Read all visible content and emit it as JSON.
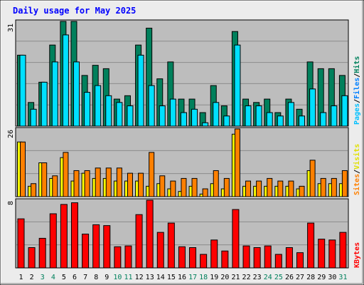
{
  "title": "Daily usage for May 2025",
  "colors": {
    "background": "#ececec",
    "plot_bg": "#bdbdbd",
    "hits": "#00805c",
    "files": "#00e0ff",
    "pages": "#00c0ff",
    "visits": "#ffff00",
    "sites": "#ff8000",
    "kbytes": "#ff0000",
    "title": "#0000ff",
    "weekday_label": "#000000",
    "weekend_label": "#00805c"
  },
  "chart_data": [
    {
      "type": "bar",
      "panel": "hits-files-pages",
      "title": "Daily usage for May 2025",
      "ymax_label": "31",
      "ylim": [
        0,
        31
      ],
      "legend": [
        "Pages",
        "Files",
        "Hits"
      ],
      "legend_separator": "/",
      "categories": [
        "1",
        "2",
        "3",
        "4",
        "5",
        "6",
        "7",
        "8",
        "9",
        "10",
        "11",
        "12",
        "13",
        "14",
        "15",
        "16",
        "17",
        "18",
        "19",
        "20",
        "21",
        "22",
        "23",
        "24",
        "25",
        "26",
        "27",
        "28",
        "29",
        "30",
        "31"
      ],
      "weekend_days": [
        "3",
        "4",
        "10",
        "11",
        "17",
        "18",
        "24",
        "25",
        "31"
      ],
      "series": [
        {
          "name": "Hits",
          "values": [
            21,
            7,
            13,
            24,
            31,
            31,
            15,
            18,
            17,
            8,
            9,
            24,
            29,
            14,
            19,
            8,
            8,
            4,
            12,
            6,
            28,
            8,
            7,
            8,
            4,
            8,
            5,
            19,
            17,
            17,
            15
          ]
        },
        {
          "name": "Files",
          "values": [
            21,
            5,
            13,
            19,
            27,
            19,
            10,
            12,
            9,
            7,
            6,
            21,
            12,
            6,
            8,
            4,
            5,
            1,
            7,
            3,
            24,
            6,
            6,
            4,
            3,
            7,
            3,
            11,
            4,
            6,
            9
          ]
        },
        {
          "name": "Pages",
          "values": [
            0,
            0,
            0,
            0,
            0,
            0,
            0,
            0,
            0,
            0,
            0,
            0,
            0,
            0,
            0,
            0,
            0,
            0,
            0,
            0,
            0,
            0,
            0,
            0,
            0,
            0,
            0,
            0,
            0,
            0,
            0
          ]
        }
      ]
    },
    {
      "type": "bar",
      "panel": "visits-sites",
      "ymax_label": "26",
      "ylim": [
        0,
        26
      ],
      "legend": [
        "Sites",
        "Visits"
      ],
      "legend_separator": "/",
      "categories": [
        "1",
        "2",
        "3",
        "4",
        "5",
        "6",
        "7",
        "8",
        "9",
        "10",
        "11",
        "12",
        "13",
        "14",
        "15",
        "16",
        "17",
        "18",
        "19",
        "20",
        "21",
        "22",
        "23",
        "24",
        "25",
        "26",
        "27",
        "28",
        "29",
        "30",
        "31"
      ],
      "series": [
        {
          "name": "Visits",
          "values": [
            21,
            4,
            13,
            7,
            15,
            6,
            9,
            7,
            7,
            6,
            6,
            6,
            4,
            5,
            3,
            2,
            4,
            1,
            5,
            3,
            24,
            4,
            4,
            4,
            4,
            4,
            3,
            10,
            5,
            5,
            5
          ]
        },
        {
          "name": "Sites",
          "values": [
            21,
            5,
            13,
            8,
            17,
            10,
            10,
            11,
            11,
            11,
            9,
            9,
            17,
            8,
            6,
            7,
            7,
            3,
            10,
            7,
            26,
            6,
            6,
            7,
            6,
            6,
            4,
            14,
            7,
            7,
            10
          ]
        }
      ]
    },
    {
      "type": "bar",
      "panel": "kbytes",
      "ymax_label": "8",
      "ylim": [
        0,
        8
      ],
      "legend": [
        "KBytes"
      ],
      "categories": [
        "1",
        "2",
        "3",
        "4",
        "5",
        "6",
        "7",
        "8",
        "9",
        "10",
        "11",
        "12",
        "13",
        "14",
        "15",
        "16",
        "17",
        "18",
        "19",
        "20",
        "21",
        "22",
        "23",
        "24",
        "25",
        "26",
        "27",
        "28",
        "29",
        "30",
        "31"
      ],
      "series": [
        {
          "name": "KBytes",
          "values": [
            5.8,
            2.4,
            3.5,
            6.4,
            7.5,
            7.7,
            4.0,
            5.1,
            5.0,
            2.5,
            2.6,
            6.3,
            8.0,
            4.2,
            5.3,
            2.5,
            2.4,
            1.6,
            3.3,
            2.0,
            6.9,
            2.6,
            2.4,
            2.6,
            1.6,
            2.4,
            1.8,
            5.3,
            3.4,
            3.3,
            4.2
          ]
        }
      ]
    }
  ]
}
